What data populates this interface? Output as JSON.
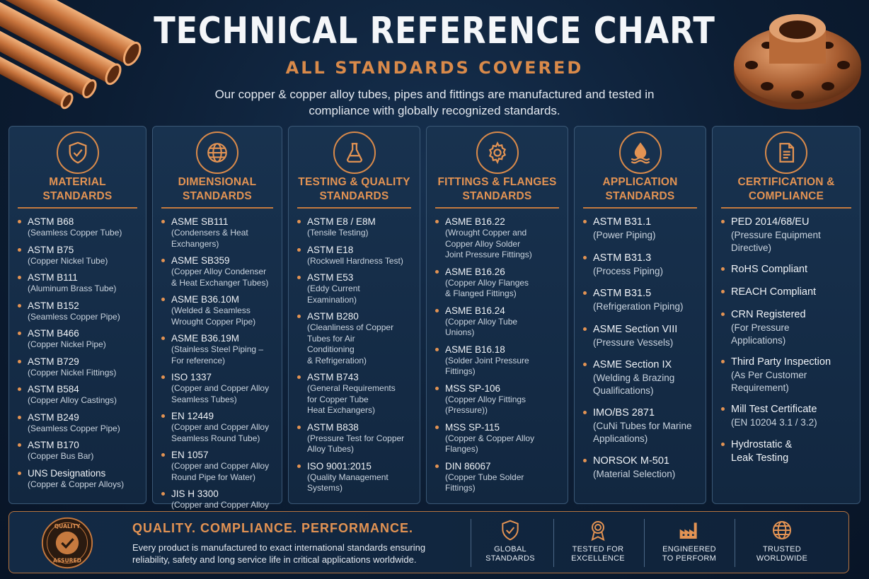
{
  "header": {
    "title": "TECHNICAL REFERENCE CHART",
    "subtitle": "ALL STANDARDS COVERED",
    "intro": "Our copper & copper alloy tubes, pipes and fittings are manufactured and tested in compliance with globally recognized standards."
  },
  "colors": {
    "accent": "#e39353",
    "background": "#0c1d33",
    "card": "#18324f"
  },
  "columns": [
    {
      "icon": "shield-check-icon",
      "heading": "MATERIAL STANDARDS",
      "items": [
        {
          "std": "ASTM B68",
          "desc": "(Seamless Copper Tube)"
        },
        {
          "std": "ASTM B75",
          "desc": "(Copper Nickel Tube)"
        },
        {
          "std": "ASTM B111",
          "desc": "(Aluminum Brass Tube)"
        },
        {
          "std": "ASTM B152",
          "desc": "(Seamless Copper Pipe)"
        },
        {
          "std": "ASTM B466",
          "desc": "(Copper Nickel Pipe)"
        },
        {
          "std": "ASTM B729",
          "desc": "(Copper Nickel Fittings)"
        },
        {
          "std": "ASTM B584",
          "desc": "(Copper Alloy Castings)"
        },
        {
          "std": "ASTM B249",
          "desc": "(Seamless Copper Pipe)"
        },
        {
          "std": "ASTM B170",
          "desc": "(Copper Bus Bar)"
        },
        {
          "std": "UNS Designations",
          "desc": "(Copper & Copper Alloys)"
        }
      ]
    },
    {
      "icon": "globe-icon",
      "heading": "DIMENSIONAL STANDARDS",
      "items": [
        {
          "std": "ASME SB111",
          "desc": "(Condensers & Heat\nExchangers)"
        },
        {
          "std": "ASME SB359",
          "desc": "(Copper Alloy Condenser\n& Heat Exchanger Tubes)"
        },
        {
          "std": "ASME B36.10M",
          "desc": "(Welded & Seamless\nWrought Copper Pipe)"
        },
        {
          "std": "ASME B36.19M",
          "desc": "(Stainless Steel Piping –\nFor reference)"
        },
        {
          "std": "ISO 1337",
          "desc": "(Copper and Copper Alloy\nSeamless Tubes)"
        },
        {
          "std": "EN 12449",
          "desc": "(Copper and Copper Alloy\nSeamless Round Tube)"
        },
        {
          "std": "EN 1057",
          "desc": "(Copper and Copper Alloy\nRound Pipe for Water)"
        },
        {
          "std": "JIS H 3300",
          "desc": "(Copper and Copper Alloy\nSeamless Pipes and Tubes)"
        }
      ]
    },
    {
      "icon": "flask-icon",
      "heading": "TESTING & QUALITY STANDARDS",
      "items": [
        {
          "std": "ASTM E8 / E8M",
          "desc": "(Tensile Testing)"
        },
        {
          "std": "ASTM E18",
          "desc": "(Rockwell Hardness Test)"
        },
        {
          "std": "ASTM E53",
          "desc": "(Eddy Current\nExamination)"
        },
        {
          "std": "ASTM B280",
          "desc": "(Cleanliness of Copper\nTubes for Air\nConditioning\n& Refrigeration)"
        },
        {
          "std": "ASTM B743",
          "desc": "(General Requirements\nfor Copper Tube\nHeat Exchangers)"
        },
        {
          "std": "ASTM B838",
          "desc": "(Pressure Test for Copper\nAlloy Tubes)"
        },
        {
          "std": "ISO 9001:2015",
          "desc": "(Quality Management\nSystems)"
        }
      ]
    },
    {
      "icon": "gear-icon",
      "heading": "FITTINGS & FLANGES STANDARDS",
      "items": [
        {
          "std": "ASME B16.22",
          "desc": "(Wrought Copper and\nCopper Alloy Solder\nJoint Pressure Fittings)"
        },
        {
          "std": "ASME B16.26",
          "desc": "(Copper Alloy Flanges\n& Flanged Fittings)"
        },
        {
          "std": "ASME B16.24",
          "desc": "(Copper Alloy Tube\nUnions)"
        },
        {
          "std": "ASME B16.18",
          "desc": "(Solder Joint Pressure\nFittings)"
        },
        {
          "std": "MSS SP-106",
          "desc": "(Copper Alloy Fittings\n(Pressure))"
        },
        {
          "std": "MSS SP-115",
          "desc": "(Copper & Copper Alloy\nFlanges)"
        },
        {
          "std": "DIN 86067",
          "desc": "(Copper Tube Solder\nFittings)"
        }
      ]
    },
    {
      "icon": "water-drop-icon",
      "heading": "APPLICATION STANDARDS",
      "items": [
        {
          "std": "ASTM B31.1",
          "desc": "(Power Piping)"
        },
        {
          "std": "ASTM B31.3",
          "desc": "(Process Piping)"
        },
        {
          "std": "ASTM B31.5",
          "desc": "(Refrigeration Piping)"
        },
        {
          "std": "ASME Section VIII",
          "desc": "(Pressure Vessels)"
        },
        {
          "std": "ASME Section IX",
          "desc": "(Welding & Brazing\nQualifications)"
        },
        {
          "std": "IMO/BS 2871",
          "desc": "(CuNi Tubes for Marine\nApplications)"
        },
        {
          "std": "NORSOK M-501",
          "desc": "(Material Selection)"
        }
      ]
    },
    {
      "icon": "document-icon",
      "heading": "CERTIFICATION & COMPLIANCE",
      "items": [
        {
          "std": "PED 2014/68/EU",
          "desc": "(Pressure Equipment\nDirective)"
        },
        {
          "std": "RoHS Compliant",
          "desc": ""
        },
        {
          "std": "REACH Compliant",
          "desc": ""
        },
        {
          "std": "CRN Registered",
          "desc": "(For Pressure\nApplications)"
        },
        {
          "std": "Third Party Inspection",
          "desc": "(As Per Customer\nRequirement)"
        },
        {
          "std": "Mill Test Certificate",
          "desc": "(EN 10204 3.1 / 3.2)"
        },
        {
          "std": "Hydrostatic &",
          "desc": "Leak Testing"
        }
      ]
    }
  ],
  "footer": {
    "seal_top": "QUALITY",
    "seal_bottom": "ASSURED",
    "tagline": "QUALITY. COMPLIANCE. PERFORMANCE.",
    "description": "Every product is manufactured to exact international standards ensuring reliability, safety and long service life in critical applications worldwide.",
    "badges": [
      {
        "icon": "shield-check-icon",
        "label": "GLOBAL\nSTANDARDS"
      },
      {
        "icon": "award-ribbon-icon",
        "label": "TESTED FOR\nEXCELLENCE"
      },
      {
        "icon": "factory-icon",
        "label": "ENGINEERED\nTO PERFORM"
      },
      {
        "icon": "globe-icon",
        "label": "TRUSTED\nWORLDWIDE"
      }
    ]
  }
}
